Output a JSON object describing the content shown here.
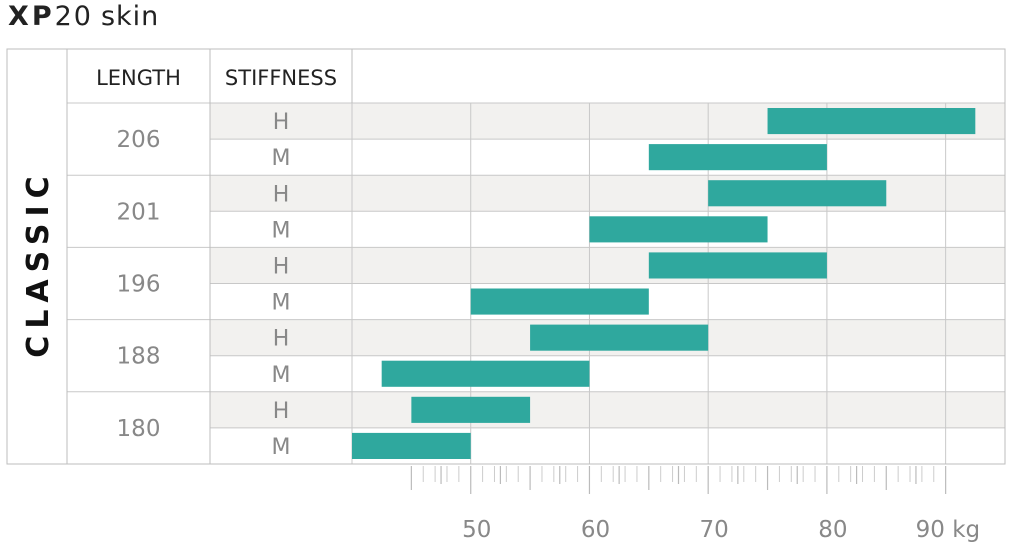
{
  "title": {
    "brand": "XP",
    "model": "20",
    "product": "skin"
  },
  "chart_data": {
    "type": "bar",
    "orientation": "horizontal-range",
    "section_label": "CLASSIC",
    "columns": {
      "length": "LENGTH",
      "stiffness": "STIFFNESS"
    },
    "x_axis": {
      "min": 40,
      "max": 95,
      "ticks": [
        50,
        60,
        70,
        80,
        90
      ],
      "tick_labels": [
        "50",
        "60",
        "70",
        "80",
        "90 kg"
      ]
    },
    "groups": [
      {
        "length": "206",
        "rows": [
          {
            "stiffness": "H",
            "range": [
              75,
              92.5
            ]
          },
          {
            "stiffness": "M",
            "range": [
              65,
              80
            ]
          }
        ]
      },
      {
        "length": "201",
        "rows": [
          {
            "stiffness": "H",
            "range": [
              70,
              85
            ]
          },
          {
            "stiffness": "M",
            "range": [
              60,
              75
            ]
          }
        ]
      },
      {
        "length": "196",
        "rows": [
          {
            "stiffness": "H",
            "range": [
              65,
              80
            ]
          },
          {
            "stiffness": "M",
            "range": [
              50,
              65
            ]
          }
        ]
      },
      {
        "length": "188",
        "rows": [
          {
            "stiffness": "H",
            "range": [
              55,
              70
            ]
          },
          {
            "stiffness": "M",
            "range": [
              42.5,
              60
            ]
          }
        ]
      },
      {
        "length": "180",
        "rows": [
          {
            "stiffness": "H",
            "range": [
              45,
              55
            ]
          },
          {
            "stiffness": "M",
            "range": [
              40,
              50
            ]
          }
        ]
      }
    ],
    "colors": {
      "bar": "#2fa89e",
      "shaded_row": "#f2f1ef",
      "grid": "#c8c8c8",
      "border": "#bdbdbd"
    }
  }
}
